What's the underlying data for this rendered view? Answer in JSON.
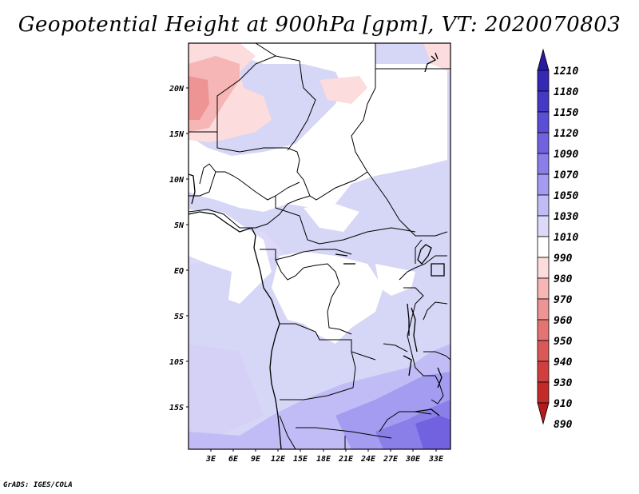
{
  "title": "Geopotential Height at 900hPa [gpm], VT: 2020070803",
  "credit": "GrADS: IGES/COLA",
  "map": {
    "lat_labels": [
      "20N",
      "15N",
      "10N",
      "5N",
      "EQ",
      "5S",
      "10S",
      "15S"
    ],
    "lon_labels": [
      "3E",
      "6E",
      "9E",
      "12E",
      "15E",
      "18E",
      "21E",
      "24E",
      "27E",
      "30E",
      "33E"
    ]
  },
  "colorbar": {
    "levels": [
      "1210",
      "1180",
      "1150",
      "1120",
      "1090",
      "1070",
      "1050",
      "1030",
      "1010",
      "990",
      "980",
      "970",
      "960",
      "950",
      "940",
      "930",
      "910",
      "890"
    ],
    "colors": [
      "#2a1aa0",
      "#3428b4",
      "#4538c6",
      "#5a4ed6",
      "#7262e0",
      "#8a7ee8",
      "#a49cf0",
      "#c2bcf6",
      "#dcdaf8",
      "#ffffff",
      "#fcdcdc",
      "#f6b6b6",
      "#ee9494",
      "#e47474",
      "#da5858",
      "#d03e3e",
      "#c42a2a",
      "#b41a1a"
    ]
  }
}
